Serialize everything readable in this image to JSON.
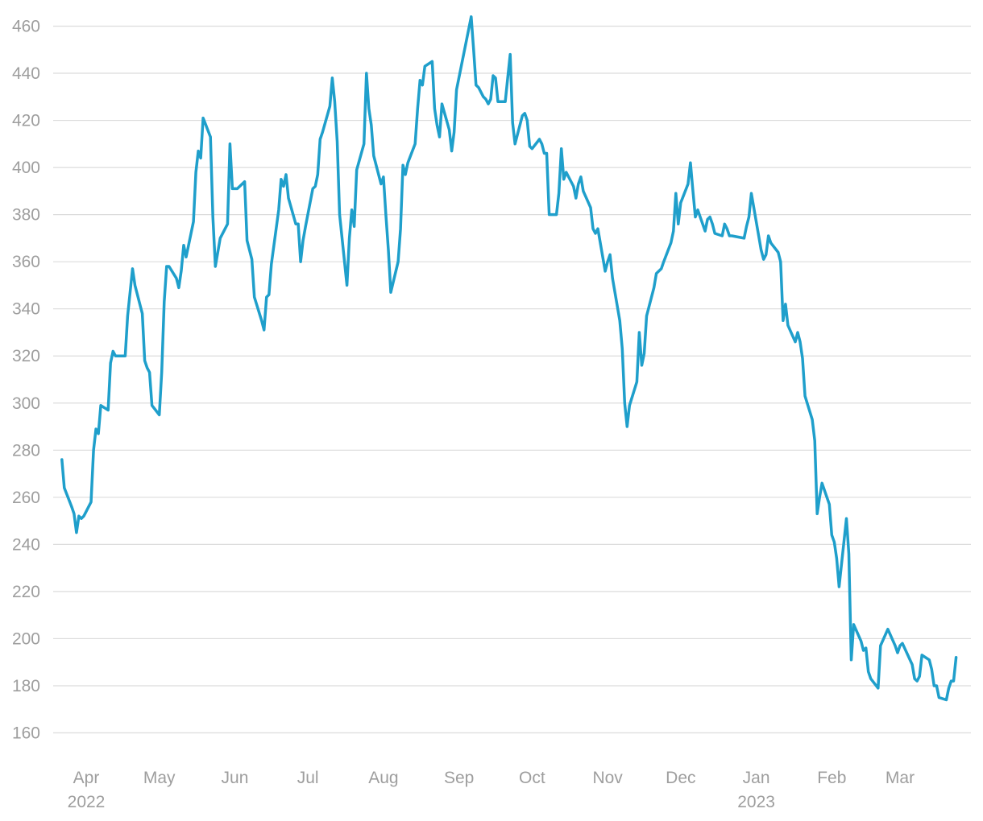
{
  "chart_data": {
    "type": "line",
    "title": "",
    "xlabel": "",
    "ylabel": "",
    "ylim": [
      160,
      460
    ],
    "y_ticks": [
      "160",
      "180",
      "200",
      "220",
      "240",
      "260",
      "280",
      "300",
      "320",
      "340",
      "360",
      "380",
      "400",
      "420",
      "440",
      "460"
    ],
    "x_ticks": [
      {
        "label": "Apr",
        "sub": "2022",
        "date": "2022-04-01"
      },
      {
        "label": "May",
        "sub": "",
        "date": "2022-05-01"
      },
      {
        "label": "Jun",
        "sub": "",
        "date": "2022-06-01"
      },
      {
        "label": "Jul",
        "sub": "",
        "date": "2022-07-01"
      },
      {
        "label": "Aug",
        "sub": "",
        "date": "2022-08-01"
      },
      {
        "label": "Sep",
        "sub": "",
        "date": "2022-09-01"
      },
      {
        "label": "Oct",
        "sub": "",
        "date": "2022-10-01"
      },
      {
        "label": "Nov",
        "sub": "",
        "date": "2022-11-01"
      },
      {
        "label": "Dec",
        "sub": "",
        "date": "2022-12-01"
      },
      {
        "label": "Jan",
        "sub": "2023",
        "date": "2023-01-01"
      },
      {
        "label": "Feb",
        "sub": "",
        "date": "2023-02-01"
      },
      {
        "label": "Mar",
        "sub": "",
        "date": "2023-03-01"
      }
    ],
    "grid": true,
    "legend": "none",
    "color": "#1f9fcb",
    "series": [
      {
        "points": [
          [
            "2022-03-22",
            276
          ],
          [
            "2022-03-23",
            264
          ],
          [
            "2022-03-26",
            256
          ],
          [
            "2022-03-27",
            253
          ],
          [
            "2022-03-28",
            245
          ],
          [
            "2022-03-29",
            252
          ],
          [
            "2022-03-30",
            251
          ],
          [
            "2022-03-31",
            252
          ],
          [
            "2022-04-03",
            258
          ],
          [
            "2022-04-04",
            280
          ],
          [
            "2022-04-05",
            289
          ],
          [
            "2022-04-06",
            287
          ],
          [
            "2022-04-07",
            299
          ],
          [
            "2022-04-10",
            297
          ],
          [
            "2022-04-11",
            317
          ],
          [
            "2022-04-12",
            322
          ],
          [
            "2022-04-13",
            320
          ],
          [
            "2022-04-17",
            320
          ],
          [
            "2022-04-18",
            337
          ],
          [
            "2022-04-20",
            357
          ],
          [
            "2022-04-21",
            350
          ],
          [
            "2022-04-24",
            338
          ],
          [
            "2022-04-25",
            318
          ],
          [
            "2022-04-26",
            315
          ],
          [
            "2022-04-27",
            313
          ],
          [
            "2022-04-28",
            299
          ],
          [
            "2022-05-01",
            295
          ],
          [
            "2022-05-02",
            313
          ],
          [
            "2022-05-03",
            343
          ],
          [
            "2022-05-04",
            358
          ],
          [
            "2022-05-05",
            358
          ],
          [
            "2022-05-08",
            353
          ],
          [
            "2022-05-09",
            349
          ],
          [
            "2022-05-10",
            356
          ],
          [
            "2022-05-11",
            367
          ],
          [
            "2022-05-12",
            362
          ],
          [
            "2022-05-15",
            377
          ],
          [
            "2022-05-16",
            398
          ],
          [
            "2022-05-17",
            407
          ],
          [
            "2022-05-18",
            404
          ],
          [
            "2022-05-19",
            421
          ],
          [
            "2022-05-22",
            413
          ],
          [
            "2022-05-23",
            379
          ],
          [
            "2022-05-24",
            358
          ],
          [
            "2022-05-25",
            364
          ],
          [
            "2022-05-26",
            370
          ],
          [
            "2022-05-29",
            376
          ],
          [
            "2022-05-30",
            410
          ],
          [
            "2022-05-31",
            391
          ],
          [
            "2022-06-02",
            391
          ],
          [
            "2022-06-05",
            394
          ],
          [
            "2022-06-06",
            369
          ],
          [
            "2022-06-08",
            361
          ],
          [
            "2022-06-09",
            345
          ],
          [
            "2022-06-12",
            335
          ],
          [
            "2022-06-13",
            331
          ],
          [
            "2022-06-14",
            345
          ],
          [
            "2022-06-15",
            346
          ],
          [
            "2022-06-16",
            359
          ],
          [
            "2022-06-19",
            382
          ],
          [
            "2022-06-20",
            395
          ],
          [
            "2022-06-21",
            392
          ],
          [
            "2022-06-22",
            397
          ],
          [
            "2022-06-23",
            387
          ],
          [
            "2022-06-26",
            376
          ],
          [
            "2022-06-27",
            376
          ],
          [
            "2022-06-28",
            360
          ],
          [
            "2022-06-29",
            369
          ],
          [
            "2022-06-30",
            375
          ],
          [
            "2022-07-03",
            391
          ],
          [
            "2022-07-04",
            392
          ],
          [
            "2022-07-05",
            397
          ],
          [
            "2022-07-06",
            412
          ],
          [
            "2022-07-07",
            415
          ],
          [
            "2022-07-10",
            426
          ],
          [
            "2022-07-11",
            438
          ],
          [
            "2022-07-12",
            428
          ],
          [
            "2022-07-13",
            411
          ],
          [
            "2022-07-14",
            380
          ],
          [
            "2022-07-17",
            350
          ],
          [
            "2022-07-18",
            370
          ],
          [
            "2022-07-19",
            382
          ],
          [
            "2022-07-20",
            375
          ],
          [
            "2022-07-21",
            399
          ],
          [
            "2022-07-24",
            410
          ],
          [
            "2022-07-25",
            440
          ],
          [
            "2022-07-26",
            425
          ],
          [
            "2022-07-27",
            418
          ],
          [
            "2022-07-28",
            405
          ],
          [
            "2022-07-31",
            393
          ],
          [
            "2022-08-01",
            396
          ],
          [
            "2022-08-02",
            380
          ],
          [
            "2022-08-03",
            365
          ],
          [
            "2022-08-04",
            347
          ],
          [
            "2022-08-07",
            360
          ],
          [
            "2022-08-08",
            374
          ],
          [
            "2022-08-09",
            401
          ],
          [
            "2022-08-10",
            397
          ],
          [
            "2022-08-11",
            402
          ],
          [
            "2022-08-14",
            410
          ],
          [
            "2022-08-15",
            425
          ],
          [
            "2022-08-16",
            437
          ],
          [
            "2022-08-17",
            435
          ],
          [
            "2022-08-18",
            443
          ],
          [
            "2022-08-21",
            445
          ],
          [
            "2022-08-22",
            425
          ],
          [
            "2022-08-23",
            418
          ],
          [
            "2022-08-24",
            413
          ],
          [
            "2022-08-25",
            427
          ],
          [
            "2022-08-28",
            416
          ],
          [
            "2022-08-29",
            407
          ],
          [
            "2022-08-30",
            415
          ],
          [
            "2022-08-31",
            433
          ],
          [
            "2022-09-06",
            464
          ],
          [
            "2022-09-07",
            450
          ],
          [
            "2022-09-08",
            435
          ],
          [
            "2022-09-09",
            434
          ],
          [
            "2022-09-11",
            430
          ],
          [
            "2022-09-12",
            429
          ],
          [
            "2022-09-13",
            427
          ],
          [
            "2022-09-14",
            429
          ],
          [
            "2022-09-15",
            439
          ],
          [
            "2022-09-16",
            438
          ],
          [
            "2022-09-17",
            428
          ],
          [
            "2022-09-20",
            428
          ],
          [
            "2022-09-21",
            438
          ],
          [
            "2022-09-22",
            448
          ],
          [
            "2022-09-23",
            419
          ],
          [
            "2022-09-24",
            410
          ],
          [
            "2022-09-27",
            422
          ],
          [
            "2022-09-28",
            423
          ],
          [
            "2022-09-29",
            420
          ],
          [
            "2022-09-30",
            409
          ],
          [
            "2022-10-01",
            408
          ],
          [
            "2022-10-04",
            412
          ],
          [
            "2022-10-05",
            410
          ],
          [
            "2022-10-06",
            406
          ],
          [
            "2022-10-07",
            406
          ],
          [
            "2022-10-08",
            380
          ],
          [
            "2022-10-11",
            380
          ],
          [
            "2022-10-12",
            389
          ],
          [
            "2022-10-13",
            408
          ],
          [
            "2022-10-14",
            395
          ],
          [
            "2022-10-15",
            398
          ],
          [
            "2022-10-18",
            392
          ],
          [
            "2022-10-19",
            387
          ],
          [
            "2022-10-20",
            393
          ],
          [
            "2022-10-21",
            396
          ],
          [
            "2022-10-22",
            390
          ],
          [
            "2022-10-25",
            383
          ],
          [
            "2022-10-26",
            374
          ],
          [
            "2022-10-27",
            372
          ],
          [
            "2022-10-28",
            374
          ],
          [
            "2022-10-31",
            356
          ],
          [
            "2022-11-01",
            360
          ],
          [
            "2022-11-02",
            363
          ],
          [
            "2022-11-03",
            353
          ],
          [
            "2022-11-06",
            335
          ],
          [
            "2022-11-07",
            323
          ],
          [
            "2022-11-08",
            300
          ],
          [
            "2022-11-09",
            290
          ],
          [
            "2022-11-10",
            299
          ],
          [
            "2022-11-13",
            309
          ],
          [
            "2022-11-14",
            330
          ],
          [
            "2022-11-15",
            316
          ],
          [
            "2022-11-16",
            321
          ],
          [
            "2022-11-17",
            337
          ],
          [
            "2022-11-20",
            349
          ],
          [
            "2022-11-21",
            355
          ],
          [
            "2022-11-22",
            356
          ],
          [
            "2022-11-23",
            357
          ],
          [
            "2022-11-24",
            360
          ],
          [
            "2022-11-27",
            368
          ],
          [
            "2022-11-28",
            373
          ],
          [
            "2022-11-29",
            389
          ],
          [
            "2022-11-30",
            376
          ],
          [
            "2022-12-01",
            385
          ],
          [
            "2022-12-04",
            393
          ],
          [
            "2022-12-05",
            402
          ],
          [
            "2022-12-06",
            390
          ],
          [
            "2022-12-07",
            379
          ],
          [
            "2022-12-08",
            382
          ],
          [
            "2022-12-11",
            373
          ],
          [
            "2022-12-12",
            378
          ],
          [
            "2022-12-13",
            379
          ],
          [
            "2022-12-14",
            376
          ],
          [
            "2022-12-15",
            372
          ],
          [
            "2022-12-18",
            371
          ],
          [
            "2022-12-19",
            376
          ],
          [
            "2022-12-20",
            374
          ],
          [
            "2022-12-21",
            371
          ],
          [
            "2022-12-22",
            371
          ],
          [
            "2022-12-27",
            370
          ],
          [
            "2022-12-28",
            375
          ],
          [
            "2022-12-29",
            379
          ],
          [
            "2022-12-30",
            389
          ],
          [
            "2023-01-02",
            371
          ],
          [
            "2023-01-03",
            365
          ],
          [
            "2023-01-04",
            361
          ],
          [
            "2023-01-05",
            363
          ],
          [
            "2023-01-06",
            371
          ],
          [
            "2023-01-07",
            368
          ],
          [
            "2023-01-10",
            364
          ],
          [
            "2023-01-11",
            360
          ],
          [
            "2023-01-12",
            335
          ],
          [
            "2023-01-13",
            342
          ],
          [
            "2023-01-14",
            333
          ],
          [
            "2023-01-17",
            326
          ],
          [
            "2023-01-18",
            330
          ],
          [
            "2023-01-19",
            326
          ],
          [
            "2023-01-20",
            319
          ],
          [
            "2023-01-21",
            303
          ],
          [
            "2023-01-24",
            293
          ],
          [
            "2023-01-25",
            284
          ],
          [
            "2023-01-26",
            253
          ],
          [
            "2023-01-27",
            260
          ],
          [
            "2023-01-28",
            266
          ],
          [
            "2023-01-31",
            257
          ],
          [
            "2023-02-01",
            244
          ],
          [
            "2023-02-02",
            241
          ],
          [
            "2023-02-03",
            234
          ],
          [
            "2023-02-04",
            222
          ],
          [
            "2023-02-07",
            251
          ],
          [
            "2023-02-08",
            236
          ],
          [
            "2023-02-09",
            191
          ],
          [
            "2023-02-10",
            206
          ],
          [
            "2023-02-13",
            199
          ],
          [
            "2023-02-14",
            195
          ],
          [
            "2023-02-15",
            196
          ],
          [
            "2023-02-16",
            186
          ],
          [
            "2023-02-17",
            183
          ],
          [
            "2023-02-20",
            179
          ],
          [
            "2023-02-21",
            197
          ],
          [
            "2023-02-24",
            204
          ],
          [
            "2023-02-27",
            197
          ],
          [
            "2023-02-28",
            194
          ],
          [
            "2023-03-01",
            197
          ],
          [
            "2023-03-02",
            198
          ],
          [
            "2023-03-06",
            189
          ],
          [
            "2023-03-07",
            183
          ],
          [
            "2023-03-08",
            182
          ],
          [
            "2023-03-09",
            184
          ],
          [
            "2023-03-10",
            193
          ],
          [
            "2023-03-13",
            191
          ],
          [
            "2023-03-14",
            187
          ],
          [
            "2023-03-15",
            180
          ],
          [
            "2023-03-16",
            180
          ],
          [
            "2023-03-17",
            175
          ],
          [
            "2023-03-20",
            174
          ],
          [
            "2023-03-21",
            179
          ],
          [
            "2023-03-22",
            182
          ],
          [
            "2023-03-23",
            182
          ],
          [
            "2023-03-24",
            192
          ]
        ]
      }
    ]
  }
}
